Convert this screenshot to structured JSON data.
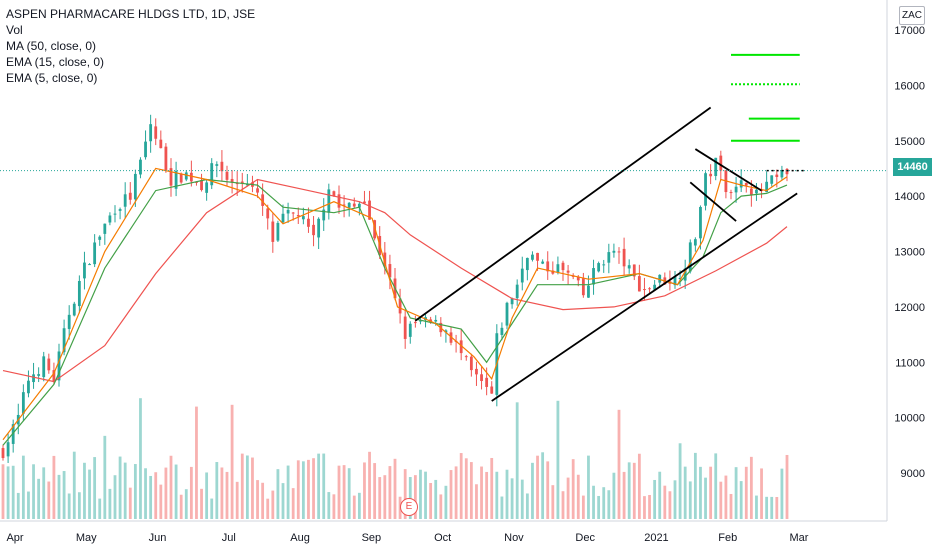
{
  "legend": {
    "title": "ASPEN PHARMACARE HLDGS LTD, 1D, JSE",
    "vol": "Vol",
    "ma50": "MA (50, close, 0)",
    "ema15": "EMA (15, close, 0)",
    "ema5": "EMA (5, close, 0)"
  },
  "currency": "ZAC",
  "last_price": "14460",
  "earnings_badge": "E",
  "colors": {
    "up": "#26a69a",
    "down": "#ef5350",
    "ma50": "#ef5350",
    "ema15": "#43a047",
    "ema5": "#f57c00",
    "trend": "#000000",
    "target": "#00e600",
    "last_line": "#26a69a"
  },
  "chart_data": {
    "type": "candlestick",
    "x_axis": {
      "labels": [
        "Apr",
        "May",
        "Jun",
        "Jul",
        "Aug",
        "Sep",
        "Oct",
        "Nov",
        "Dec",
        "2021",
        "Feb",
        "Mar"
      ],
      "range_days": [
        0,
        330
      ]
    },
    "y_axis": {
      "ticks": [
        9000,
        10000,
        11000,
        12000,
        13000,
        14000,
        15000,
        16000,
        17000
      ],
      "range": [
        8050,
        17150
      ],
      "position": "right"
    },
    "price_path": [
      [
        0,
        9400
      ],
      [
        6,
        10000
      ],
      [
        10,
        10700
      ],
      [
        16,
        11000
      ],
      [
        20,
        10700
      ],
      [
        26,
        11900
      ],
      [
        32,
        12700
      ],
      [
        38,
        13300
      ],
      [
        44,
        13800
      ],
      [
        50,
        14000
      ],
      [
        54,
        14600
      ],
      [
        58,
        15300
      ],
      [
        62,
        14800
      ],
      [
        66,
        14300
      ],
      [
        72,
        14400
      ],
      [
        78,
        14200
      ],
      [
        84,
        14600
      ],
      [
        90,
        14200
      ],
      [
        96,
        14300
      ],
      [
        102,
        13800
      ],
      [
        106,
        13200
      ],
      [
        110,
        13600
      ],
      [
        116,
        13700
      ],
      [
        122,
        13200
      ],
      [
        128,
        14200
      ],
      [
        132,
        13800
      ],
      [
        138,
        13800
      ],
      [
        142,
        14000
      ],
      [
        146,
        13200
      ],
      [
        150,
        12800
      ],
      [
        154,
        12100
      ],
      [
        158,
        11500
      ],
      [
        162,
        11700
      ],
      [
        168,
        11700
      ],
      [
        174,
        11600
      ],
      [
        178,
        11300
      ],
      [
        184,
        10800
      ],
      [
        188,
        10600
      ],
      [
        192,
        10400
      ],
      [
        194,
        11400
      ],
      [
        198,
        12000
      ],
      [
        202,
        12400
      ],
      [
        206,
        13000
      ],
      [
        212,
        12700
      ],
      [
        218,
        12700
      ],
      [
        224,
        12500
      ],
      [
        228,
        12200
      ],
      [
        234,
        12800
      ],
      [
        240,
        13000
      ],
      [
        244,
        12800
      ],
      [
        248,
        12500
      ],
      [
        252,
        12300
      ],
      [
        258,
        12500
      ],
      [
        264,
        12500
      ],
      [
        268,
        12800
      ],
      [
        272,
        13300
      ],
      [
        276,
        14300
      ],
      [
        280,
        14600
      ],
      [
        284,
        14200
      ],
      [
        288,
        14100
      ],
      [
        292,
        14300
      ],
      [
        296,
        14000
      ],
      [
        300,
        14200
      ],
      [
        304,
        14300
      ],
      [
        308,
        14450
      ]
    ],
    "moving_averages": [
      {
        "name": "MA (50, close, 0)",
        "points": [
          [
            0,
            10850
          ],
          [
            20,
            10650
          ],
          [
            40,
            11300
          ],
          [
            60,
            12600
          ],
          [
            80,
            13700
          ],
          [
            100,
            14300
          ],
          [
            120,
            14100
          ],
          [
            140,
            13900
          ],
          [
            150,
            13700
          ],
          [
            160,
            13300
          ],
          [
            180,
            12700
          ],
          [
            200,
            12150
          ],
          [
            220,
            11950
          ],
          [
            240,
            12000
          ],
          [
            260,
            12200
          ],
          [
            280,
            12650
          ],
          [
            300,
            13150
          ],
          [
            308,
            13450
          ]
        ]
      },
      {
        "name": "EMA (15, close, 0)",
        "points": [
          [
            0,
            9500
          ],
          [
            20,
            10600
          ],
          [
            40,
            12700
          ],
          [
            60,
            14100
          ],
          [
            80,
            14300
          ],
          [
            100,
            14200
          ],
          [
            110,
            13800
          ],
          [
            130,
            13700
          ],
          [
            140,
            13800
          ],
          [
            150,
            12700
          ],
          [
            160,
            11800
          ],
          [
            170,
            11700
          ],
          [
            180,
            11600
          ],
          [
            190,
            11000
          ],
          [
            200,
            11700
          ],
          [
            210,
            12400
          ],
          [
            230,
            12400
          ],
          [
            250,
            12600
          ],
          [
            265,
            12400
          ],
          [
            275,
            12900
          ],
          [
            282,
            13700
          ],
          [
            290,
            14000
          ],
          [
            300,
            14050
          ],
          [
            308,
            14200
          ]
        ]
      },
      {
        "name": "EMA (5, close, 0)",
        "points": [
          [
            0,
            9600
          ],
          [
            20,
            10800
          ],
          [
            40,
            13000
          ],
          [
            60,
            14500
          ],
          [
            80,
            14300
          ],
          [
            100,
            14000
          ],
          [
            110,
            13500
          ],
          [
            130,
            13900
          ],
          [
            145,
            13600
          ],
          [
            155,
            12000
          ],
          [
            170,
            11700
          ],
          [
            185,
            11100
          ],
          [
            192,
            10700
          ],
          [
            200,
            11800
          ],
          [
            210,
            12700
          ],
          [
            230,
            12500
          ],
          [
            250,
            12600
          ],
          [
            265,
            12400
          ],
          [
            275,
            13200
          ],
          [
            282,
            14300
          ],
          [
            290,
            14200
          ],
          [
            300,
            14100
          ],
          [
            308,
            14350
          ]
        ]
      }
    ],
    "trendlines": [
      {
        "name": "channel-upper",
        "from": [
          162,
          11750
        ],
        "to": [
          278,
          15600
        ]
      },
      {
        "name": "channel-lower",
        "from": [
          192,
          10300
        ],
        "to": [
          312,
          14050
        ]
      },
      {
        "name": "flag-upper",
        "from": [
          272,
          14850
        ],
        "to": [
          298,
          14100
        ]
      },
      {
        "name": "flag-lower",
        "from": [
          270,
          14250
        ],
        "to": [
          288,
          13550
        ]
      }
    ],
    "target_levels": [
      {
        "price": 16550,
        "from": 286,
        "to": 313,
        "style": "solid"
      },
      {
        "price": 16020,
        "from": 286,
        "to": 313,
        "style": "dotted"
      },
      {
        "price": 15400,
        "from": 293,
        "to": 313,
        "style": "solid"
      },
      {
        "price": 15000,
        "from": 286,
        "to": 313,
        "style": "solid"
      }
    ],
    "last_price_line": {
      "price": 14460,
      "from": 300,
      "to": 310
    },
    "volume_range": [
      0,
      100
    ]
  }
}
